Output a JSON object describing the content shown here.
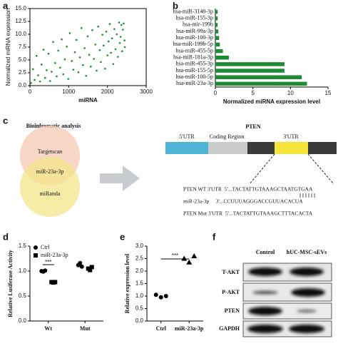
{
  "panels": {
    "a": "a",
    "b": "b",
    "c": "c",
    "d": "d",
    "e": "e",
    "f": "f"
  },
  "chart_data": [
    {
      "type": "scatter",
      "xlabel": "miRNA",
      "ylabel": "Normalized miRNA expression",
      "color": "#1f8a34",
      "x": [
        30,
        80,
        120,
        170,
        210,
        260,
        300,
        350,
        390,
        430,
        480,
        520,
        560,
        600,
        650,
        690,
        730,
        780,
        820,
        860,
        900,
        950,
        990,
        1030,
        1080,
        1120,
        1160,
        1200,
        1250,
        1290,
        1330,
        1370,
        1410,
        1450,
        1490,
        1530,
        1570,
        1610,
        1650,
        1690,
        1720,
        1760,
        1800,
        1830,
        1870,
        1900,
        1940,
        1970,
        2000,
        2030,
        2060,
        2090,
        2120,
        2150,
        2180,
        2210,
        2240,
        2270,
        2300,
        2320,
        2340,
        2360,
        2380,
        2400,
        2420,
        2440,
        2450
      ],
      "values": [
        0.5,
        3.2,
        1.1,
        5.8,
        2.0,
        0.8,
        4.1,
        7.0,
        1.5,
        3.0,
        6.2,
        0.9,
        2.7,
        8.5,
        4.4,
        1.8,
        6.8,
        3.5,
        9.0,
        2.2,
        5.1,
        7.6,
        1.3,
        10.2,
        4.8,
        3.1,
        6.5,
        8.9,
        2.6,
        5.5,
        11.2,
        4.0,
        7.3,
        1.9,
        9.6,
        6.0,
        3.7,
        10.8,
        5.2,
        8.0,
        2.9,
        11.5,
        6.9,
        4.6,
        9.9,
        7.8,
        3.3,
        10.5,
        5.9,
        8.6,
        12.0,
        6.4,
        9.2,
        4.2,
        11.0,
        7.1,
        10.0,
        5.6,
        12.3,
        8.3,
        9.5,
        11.8,
        6.7,
        10.9,
        12.1,
        8.8,
        7.5
      ],
      "xlim": [
        0,
        3000
      ],
      "xticks": [
        0,
        1000,
        2000,
        3000
      ],
      "ylim": [
        0,
        15
      ],
      "yticks": [
        {
          "value": 0,
          "label": "0.0"
        },
        2.5,
        {
          "value": 5,
          "label": "5.0"
        },
        7.5,
        {
          "value": 10,
          "label": "10.0"
        },
        12.5,
        {
          "value": 15,
          "label": "15.0"
        }
      ]
    },
    {
      "type": "barh",
      "xlabel": "Normalized miRNA expression level",
      "color": "#1f8a34",
      "categories": [
        "hsa-miR-3140-3p",
        "hsa-miR-155-3p",
        "hsa-mir-199b",
        "hsa-miR-99a-3p",
        "hsa-miR-100-3p",
        "hsa-miR-199b-5p",
        "hsa-miR-455-5p",
        "hsa-miR-181a-3p",
        "hsa-miR-455-3p",
        "hsa-miR-155-5p",
        "hsa-miR-100-5p",
        "hsa-miR-23a-3p"
      ],
      "values": [
        0.3,
        0.3,
        0.3,
        0.4,
        0.5,
        0.6,
        1.0,
        1.8,
        9.2,
        9.2,
        11.5,
        12.2
      ],
      "xlim": [
        0,
        15
      ],
      "xticks": [
        0,
        5,
        10,
        15
      ]
    },
    {
      "type": "dot",
      "ylabel": "Relative Lusiferase Activity",
      "categories": [
        "Wt",
        "Mut"
      ],
      "series": [
        {
          "name": "Ctrl",
          "color": "#000000",
          "marker": "circle",
          "values": [
            [
              1.0,
              0.99,
              1.01
            ],
            [
              1.12,
              1.16,
              1.09
            ]
          ]
        },
        {
          "name": "miR-23a-3p",
          "color": "#000000",
          "marker": "square",
          "values": [
            [
              0.78,
              0.77,
              0.78
            ],
            [
              1.05,
              1.02,
              1.08
            ]
          ]
        }
      ],
      "ylim": [
        0,
        1.5
      ],
      "yticks": [
        {
          "value": 0,
          "label": "0.0"
        },
        0.5,
        {
          "value": 1,
          "label": "1.0"
        },
        1.5
      ],
      "annotation": "***"
    },
    {
      "type": "dot",
      "ylabel": "Relative expression level",
      "categories": [
        "Ctrl",
        "miR-23a-3p"
      ],
      "color": "#000000",
      "markers": [
        "circle",
        "triangle"
      ],
      "values": [
        [
          1.05,
          0.95,
          1.0
        ],
        [
          2.5,
          2.35,
          2.6
        ]
      ],
      "ylim": [
        0,
        3
      ],
      "yticks": [
        {
          "value": 0,
          "label": "0.0"
        },
        0.5,
        {
          "value": 1,
          "label": "1.0"
        },
        1.5,
        {
          "value": 2,
          "label": "2.0"
        },
        2.5,
        {
          "value": 3,
          "label": "3.0"
        }
      ],
      "annotation": "***"
    }
  ],
  "venn": {
    "title": "Bioinfromatic analysis",
    "top": "Targetscan",
    "overlap": "miR-23a-3p",
    "bottom": "miRanda"
  },
  "gene": {
    "title": "PTEN",
    "segments": [
      "5'UTR",
      "Coding Region",
      "3'UTR"
    ],
    "sequences": [
      "PTEN WT 3'UTR  5'...TACTATTGTAAAGCTAATGTGAA",
      "miR-23a-3p     3'...CCUUUAGGGACCGUUACACUA",
      "PTEN Mut 3'UTR  5'...TACTATTGTAAAGCTTTACACTA"
    ]
  },
  "blot": {
    "columns": [
      "Control",
      "hUC-MSC-sEVs"
    ],
    "rows": [
      "T-AKT",
      "P-AKT",
      "PTEN",
      "GAPDH"
    ]
  }
}
